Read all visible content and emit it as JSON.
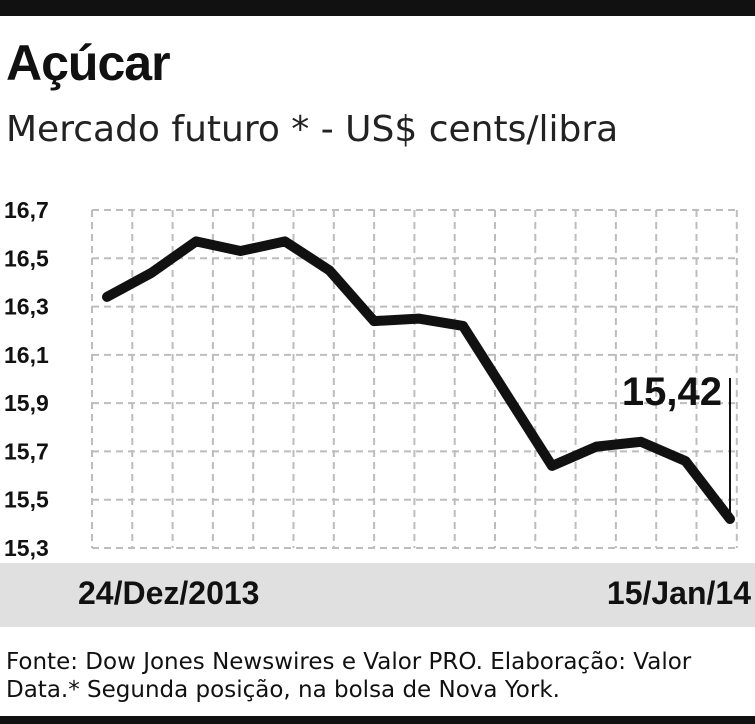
{
  "header": {
    "title": "Açúcar",
    "subtitle": "Mercado futuro * - US$ cents/libra"
  },
  "chart_data": {
    "type": "line",
    "title": "Açúcar",
    "subtitle": "Mercado futuro * - US$ cents/libra",
    "xlabel": "",
    "ylabel": "",
    "ylim": [
      15.3,
      16.7
    ],
    "yticks": [
      15.3,
      15.5,
      15.7,
      15.9,
      16.1,
      16.3,
      16.5,
      16.7
    ],
    "ytick_labels": [
      "15,3",
      "15,5",
      "15,7",
      "15,9",
      "16,1",
      "16,3",
      "16,5",
      "16,7"
    ],
    "x_start_label": "24/Dez/2013",
    "x_end_label": "15/Jan/14",
    "grid": true,
    "series": [
      {
        "values": [
          16.34,
          16.44,
          16.57,
          16.53,
          16.57,
          16.45,
          16.24,
          16.25,
          16.22,
          15.93,
          15.64,
          15.72,
          15.74,
          15.66,
          15.42
        ]
      }
    ],
    "last_value_label": "15,42"
  },
  "footer": {
    "source": "Fonte: Dow Jones Newswires e Valor PRO. Elaboração: Valor Data.* Segunda posição, na bolsa de Nova York."
  }
}
